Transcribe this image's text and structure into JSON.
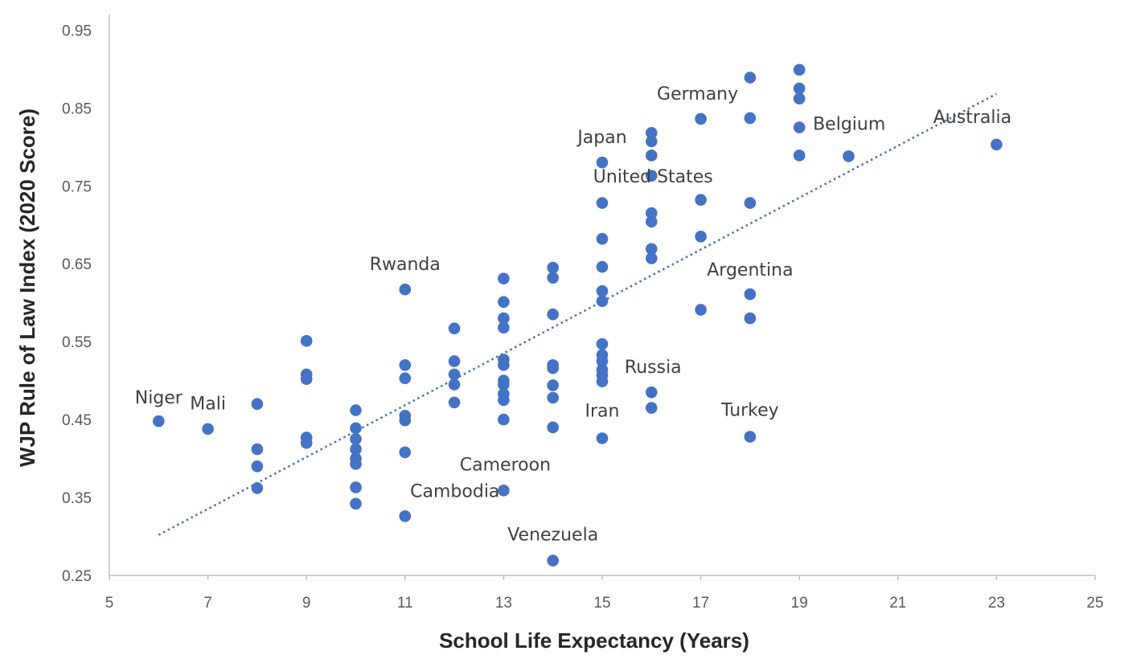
{
  "chart_data": {
    "type": "scatter",
    "xlabel": "School Life Expectancy (Years)",
    "ylabel": "WJP Rule of Law Index (2020 Score)",
    "xlim": [
      5,
      25
    ],
    "ylim": [
      0.25,
      0.97
    ],
    "xticks": [
      "5",
      "7",
      "9",
      "11",
      "13",
      "15",
      "17",
      "19",
      "21",
      "23",
      "25"
    ],
    "yticks": [
      "0.25",
      "0.35",
      "0.45",
      "0.55",
      "0.65",
      "0.75",
      "0.85",
      "0.95"
    ],
    "grid": false,
    "legend": "none",
    "colors": {
      "point": "#4472C4",
      "trendline": "#4472C4",
      "axis": "#BFBFBF"
    },
    "trendline": {
      "style": "dotted",
      "x": [
        6,
        23
      ],
      "y": [
        0.302,
        0.868
      ]
    },
    "points": [
      {
        "x": 6,
        "y": 0.448
      },
      {
        "x": 7,
        "y": 0.438
      },
      {
        "x": 8,
        "y": 0.47
      },
      {
        "x": 8,
        "y": 0.412
      },
      {
        "x": 8,
        "y": 0.39
      },
      {
        "x": 8,
        "y": 0.362
      },
      {
        "x": 9,
        "y": 0.551
      },
      {
        "x": 9,
        "y": 0.508
      },
      {
        "x": 9,
        "y": 0.502
      },
      {
        "x": 9,
        "y": 0.427
      },
      {
        "x": 9,
        "y": 0.42
      },
      {
        "x": 10,
        "y": 0.462
      },
      {
        "x": 10,
        "y": 0.439
      },
      {
        "x": 10,
        "y": 0.425
      },
      {
        "x": 10,
        "y": 0.412
      },
      {
        "x": 10,
        "y": 0.4
      },
      {
        "x": 10,
        "y": 0.393
      },
      {
        "x": 10,
        "y": 0.363
      },
      {
        "x": 10,
        "y": 0.342
      },
      {
        "x": 11,
        "y": 0.617
      },
      {
        "x": 11,
        "y": 0.52
      },
      {
        "x": 11,
        "y": 0.503
      },
      {
        "x": 11,
        "y": 0.455
      },
      {
        "x": 11,
        "y": 0.449
      },
      {
        "x": 11,
        "y": 0.408
      },
      {
        "x": 11,
        "y": 0.326
      },
      {
        "x": 12,
        "y": 0.567
      },
      {
        "x": 12,
        "y": 0.525
      },
      {
        "x": 12,
        "y": 0.508
      },
      {
        "x": 12,
        "y": 0.495
      },
      {
        "x": 12,
        "y": 0.472
      },
      {
        "x": 13,
        "y": 0.631
      },
      {
        "x": 13,
        "y": 0.601
      },
      {
        "x": 13,
        "y": 0.58
      },
      {
        "x": 13,
        "y": 0.568
      },
      {
        "x": 13,
        "y": 0.527
      },
      {
        "x": 13,
        "y": 0.52
      },
      {
        "x": 13,
        "y": 0.5
      },
      {
        "x": 13,
        "y": 0.495
      },
      {
        "x": 13,
        "y": 0.483
      },
      {
        "x": 13,
        "y": 0.475
      },
      {
        "x": 13,
        "y": 0.45
      },
      {
        "x": 13,
        "y": 0.359
      },
      {
        "x": 14,
        "y": 0.645
      },
      {
        "x": 14,
        "y": 0.632
      },
      {
        "x": 14,
        "y": 0.585
      },
      {
        "x": 14,
        "y": 0.52
      },
      {
        "x": 14,
        "y": 0.516
      },
      {
        "x": 14,
        "y": 0.494
      },
      {
        "x": 14,
        "y": 0.478
      },
      {
        "x": 14,
        "y": 0.44
      },
      {
        "x": 14,
        "y": 0.269
      },
      {
        "x": 15,
        "y": 0.78
      },
      {
        "x": 15,
        "y": 0.728
      },
      {
        "x": 15,
        "y": 0.682
      },
      {
        "x": 15,
        "y": 0.646
      },
      {
        "x": 15,
        "y": 0.615
      },
      {
        "x": 15,
        "y": 0.602
      },
      {
        "x": 15,
        "y": 0.547
      },
      {
        "x": 15,
        "y": 0.533
      },
      {
        "x": 15,
        "y": 0.525
      },
      {
        "x": 15,
        "y": 0.514
      },
      {
        "x": 15,
        "y": 0.507
      },
      {
        "x": 15,
        "y": 0.499
      },
      {
        "x": 15,
        "y": 0.426
      },
      {
        "x": 16,
        "y": 0.818
      },
      {
        "x": 16,
        "y": 0.807
      },
      {
        "x": 16,
        "y": 0.789
      },
      {
        "x": 16,
        "y": 0.763
      },
      {
        "x": 16,
        "y": 0.715
      },
      {
        "x": 16,
        "y": 0.704
      },
      {
        "x": 16,
        "y": 0.669
      },
      {
        "x": 16,
        "y": 0.657
      },
      {
        "x": 16,
        "y": 0.485
      },
      {
        "x": 16,
        "y": 0.465
      },
      {
        "x": 17,
        "y": 0.836
      },
      {
        "x": 17,
        "y": 0.732
      },
      {
        "x": 17,
        "y": 0.685
      },
      {
        "x": 17,
        "y": 0.591
      },
      {
        "x": 18,
        "y": 0.889
      },
      {
        "x": 18,
        "y": 0.837
      },
      {
        "x": 18,
        "y": 0.728
      },
      {
        "x": 18,
        "y": 0.611
      },
      {
        "x": 18,
        "y": 0.58
      },
      {
        "x": 18,
        "y": 0.428
      },
      {
        "x": 19,
        "y": 0.899
      },
      {
        "x": 19,
        "y": 0.875
      },
      {
        "x": 19,
        "y": 0.862
      },
      {
        "x": 19,
        "y": 0.825
      },
      {
        "x": 19,
        "y": 0.789
      },
      {
        "x": 20,
        "y": 0.788
      },
      {
        "x": 23,
        "y": 0.803
      }
    ],
    "annotations": [
      {
        "text": "Niger",
        "x": 6,
        "y": 0.448
      },
      {
        "text": "Mali",
        "x": 7,
        "y": 0.438
      },
      {
        "text": "Cambodia",
        "x": 11,
        "y": 0.326
      },
      {
        "text": "Rwanda",
        "x": 11,
        "y": 0.617
      },
      {
        "text": "Cameroon",
        "x": 13,
        "y": 0.359
      },
      {
        "text": "Venezuela",
        "x": 14,
        "y": 0.269
      },
      {
        "text": "Iran",
        "x": 15,
        "y": 0.426
      },
      {
        "text": "Japan",
        "x": 15,
        "y": 0.78
      },
      {
        "text": "Russia",
        "x": 16,
        "y": 0.485
      },
      {
        "text": "United States",
        "x": 16,
        "y": 0.704
      },
      {
        "text": "Germany",
        "x": 17,
        "y": 0.836
      },
      {
        "text": "Argentina",
        "x": 18,
        "y": 0.611
      },
      {
        "text": "Turkey",
        "x": 18,
        "y": 0.428
      },
      {
        "text": "Belgium",
        "x": 19,
        "y": 0.825
      },
      {
        "text": "Australia",
        "x": 23,
        "y": 0.803
      }
    ]
  }
}
